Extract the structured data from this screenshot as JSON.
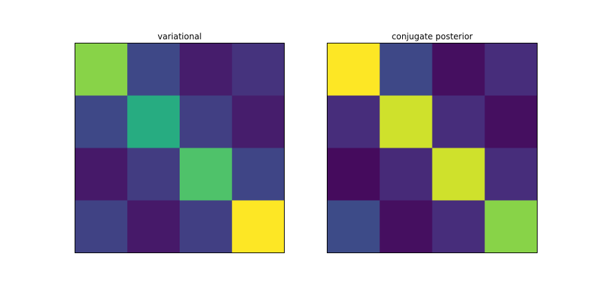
{
  "chart_data": [
    {
      "type": "heatmap",
      "title": "variational",
      "colormap": "viridis",
      "values": [
        [
          0.82,
          0.22,
          0.08,
          0.15
        ],
        [
          0.22,
          0.62,
          0.19,
          0.08
        ],
        [
          0.07,
          0.18,
          0.72,
          0.21
        ],
        [
          0.2,
          0.07,
          0.19,
          1.0
        ]
      ],
      "xlabel": "",
      "ylabel": "",
      "axis_ticks": false,
      "grid": false
    },
    {
      "type": "heatmap",
      "title": "conjugate posterior",
      "colormap": "viridis",
      "values": [
        [
          1.0,
          0.22,
          0.04,
          0.13
        ],
        [
          0.13,
          0.93,
          0.13,
          0.04
        ],
        [
          0.03,
          0.12,
          0.93,
          0.13
        ],
        [
          0.23,
          0.04,
          0.13,
          0.82
        ]
      ],
      "xlabel": "",
      "ylabel": "",
      "axis_ticks": false,
      "grid": false
    }
  ]
}
